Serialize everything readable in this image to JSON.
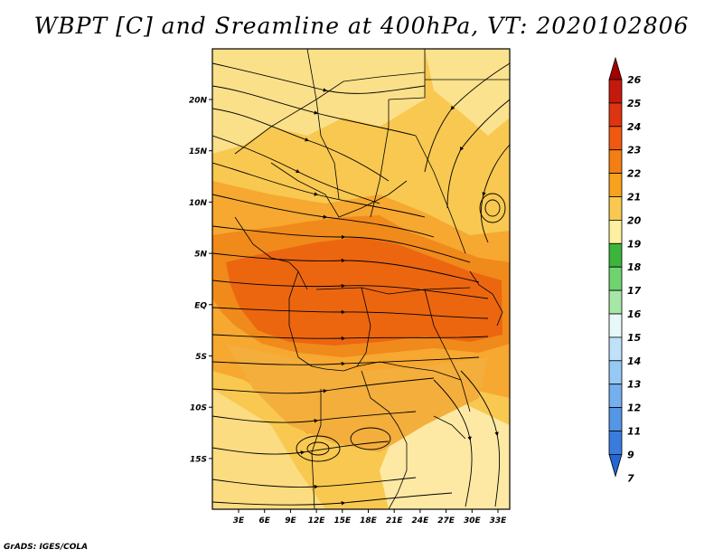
{
  "title": "WBPT [C] and Sreamline at 400hPa, VT: 2020102806",
  "credit": "GrADS: IGES/COLA",
  "map": {
    "lat_labels": [
      "20N",
      "15N",
      "10N",
      "5N",
      "EQ",
      "5S",
      "10S",
      "15S"
    ],
    "lon_labels": [
      "3E",
      "6E",
      "9E",
      "12E",
      "15E",
      "18E",
      "21E",
      "24E",
      "27E",
      "30E",
      "33E"
    ]
  },
  "colorbar": {
    "labels": [
      "26",
      "25",
      "24",
      "23",
      "22",
      "21",
      "20",
      "19",
      "18",
      "17",
      "16",
      "15",
      "14",
      "13",
      "12",
      "11",
      "9",
      "7"
    ],
    "colors": [
      "#a50000",
      "#c41a0c",
      "#de3412",
      "#f05a10",
      "#f37f12",
      "#f6a21c",
      "#f8c850",
      "#fdf0a0",
      "#3bb53b",
      "#6fd46f",
      "#a6e6a6",
      "#e8f8f8",
      "#bfe2fa",
      "#96c9f3",
      "#74b0ee",
      "#5596e6",
      "#3a7cdd",
      "#2466d2"
    ]
  }
}
